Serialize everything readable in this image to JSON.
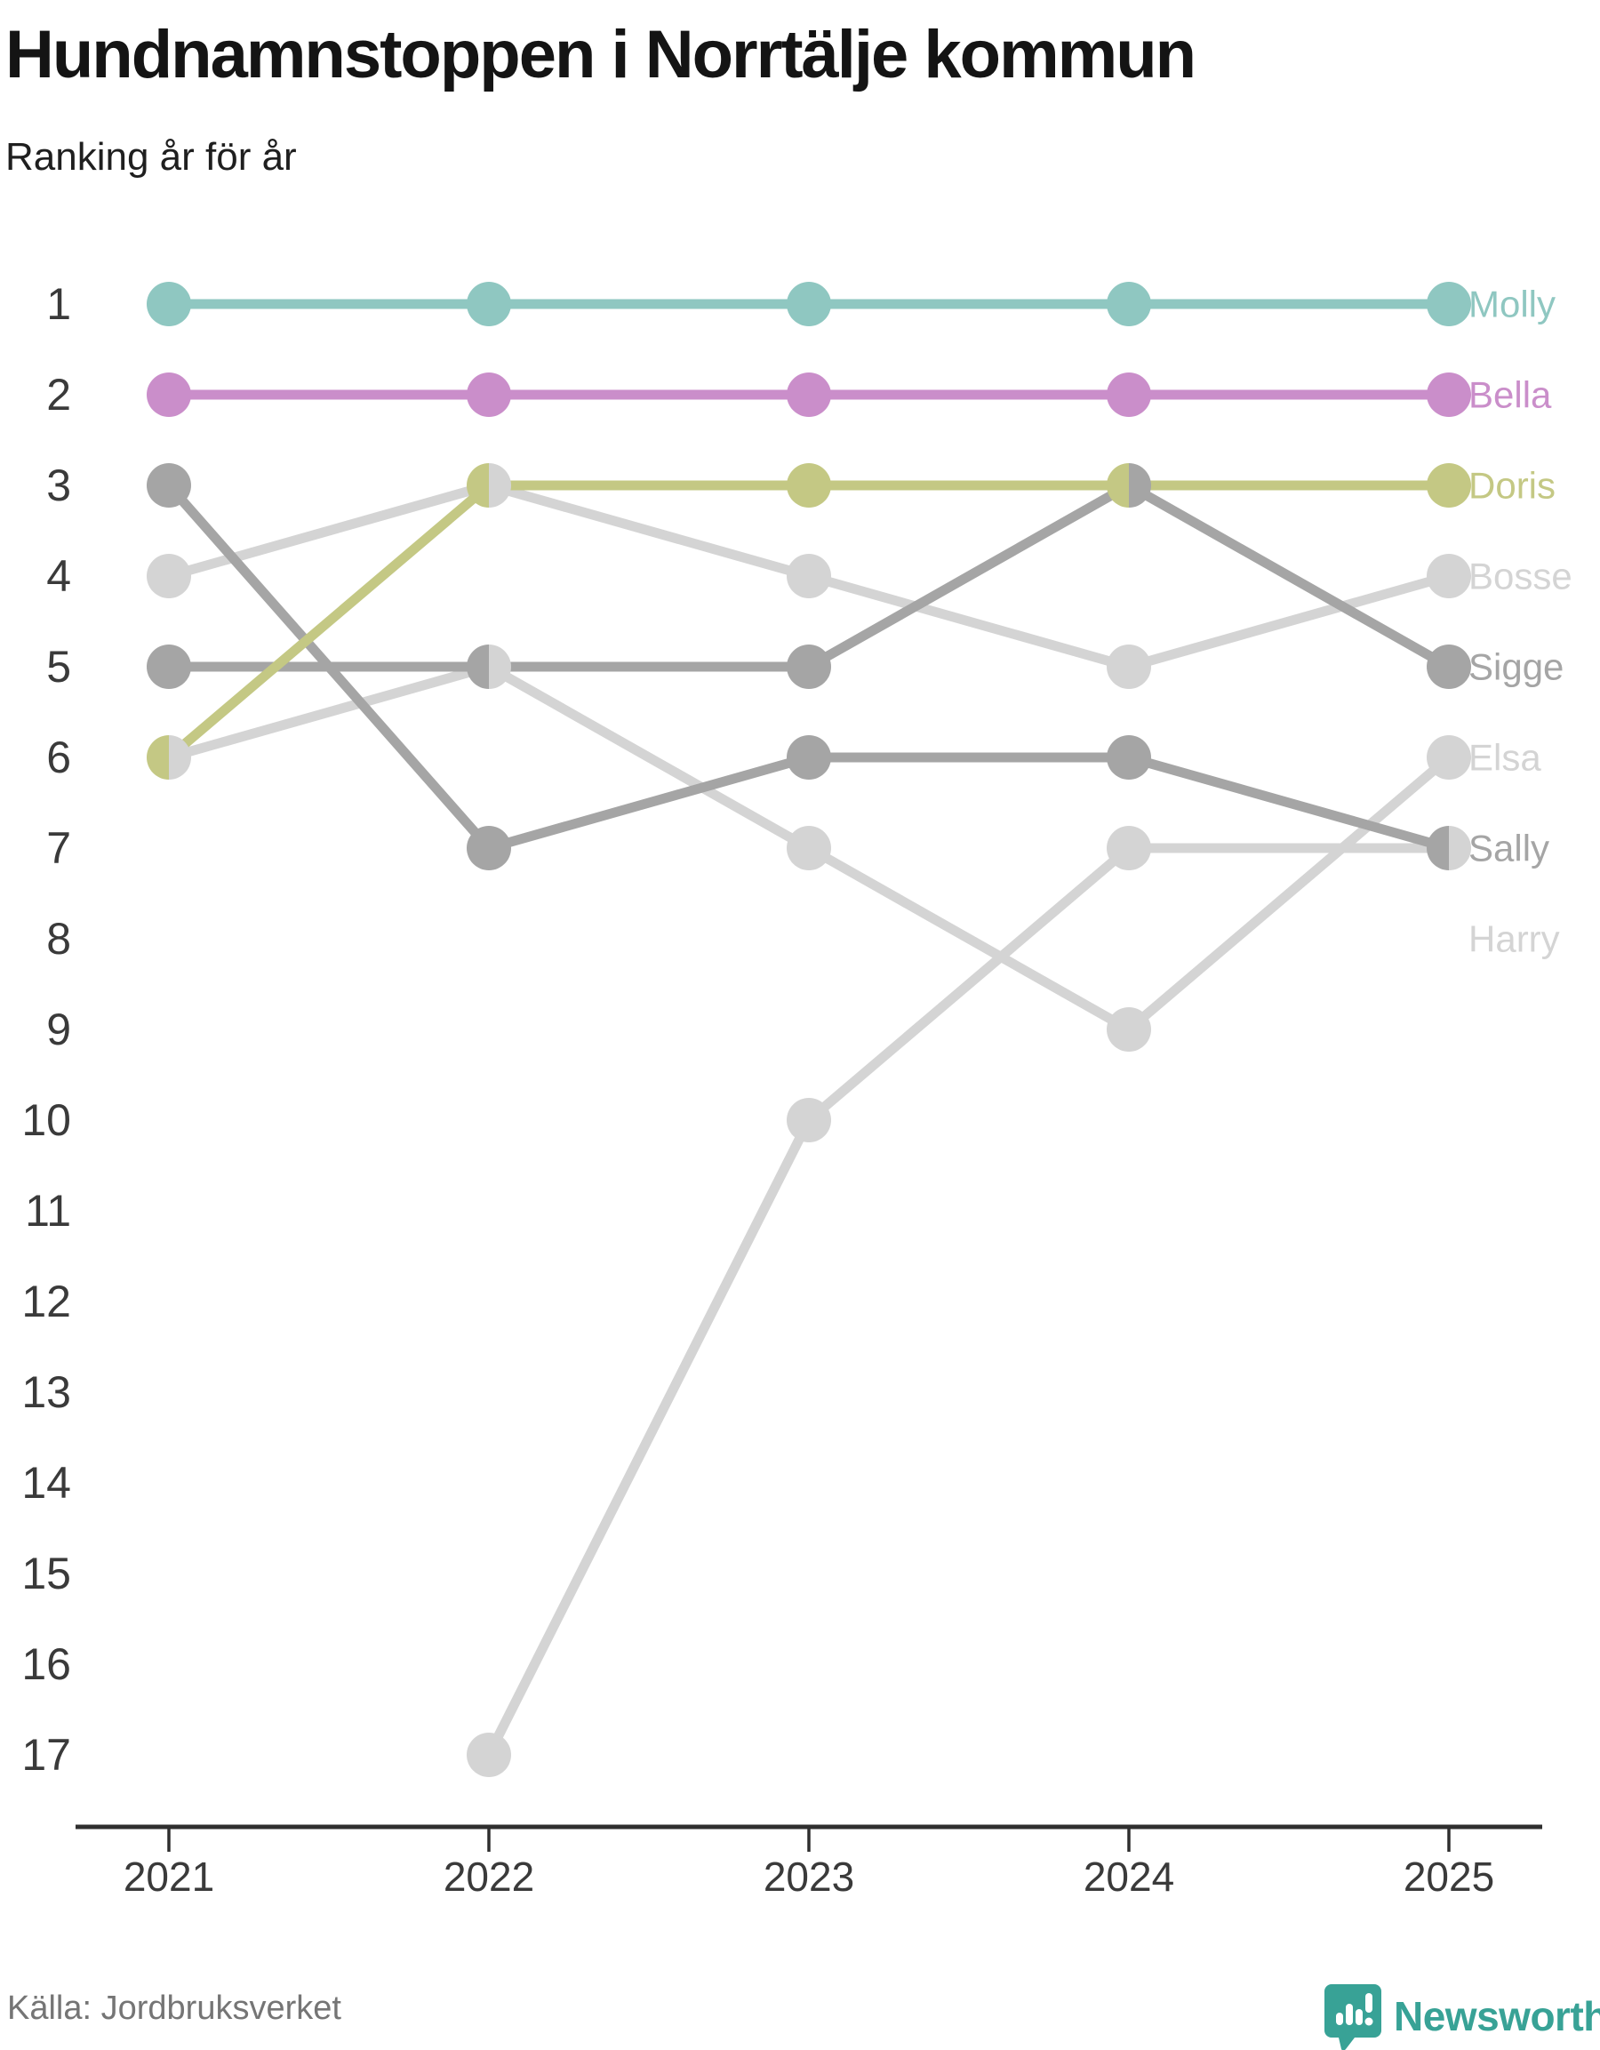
{
  "header": {
    "title": "Hundnamnstoppen i Norrtälje kommun",
    "subtitle": "Ranking år för år"
  },
  "chart_data": {
    "type": "line",
    "subtype": "bump-ranking",
    "x": [
      "2021",
      "2022",
      "2023",
      "2024",
      "2025"
    ],
    "y_axis": {
      "inverted": true,
      "ticks": [
        1,
        2,
        3,
        4,
        5,
        6,
        7,
        8,
        9,
        10,
        11,
        12,
        13,
        14,
        15,
        16,
        17
      ]
    },
    "series": [
      {
        "name": "Molly",
        "color": "#8fc7c1",
        "ranks": [
          1,
          1,
          1,
          1,
          1
        ]
      },
      {
        "name": "Bella",
        "color": "#ca8eca",
        "ranks": [
          2,
          2,
          2,
          2,
          2
        ]
      },
      {
        "name": "Doris",
        "color": "#c4c884",
        "ranks": [
          6,
          3,
          3,
          3,
          3
        ]
      },
      {
        "name": "Bosse",
        "color": "#d4d4d4",
        "ranks": [
          4,
          3,
          4,
          5,
          4
        ]
      },
      {
        "name": "Sigge",
        "color": "#a5a5a5",
        "ranks": [
          5,
          5,
          5,
          3,
          5
        ]
      },
      {
        "name": "Elsa",
        "color": "#d4d4d4",
        "ranks": [
          6,
          5,
          7,
          9,
          6
        ]
      },
      {
        "name": "Sally",
        "color": "#a5a5a5",
        "ranks": [
          3,
          7,
          6,
          6,
          7
        ]
      },
      {
        "name": "Harry",
        "color": "#d4d4d4",
        "ranks": [
          null,
          17,
          10,
          7,
          7
        ],
        "label_rank": 8
      }
    ],
    "colors": {
      "axis": "#2f2f2f",
      "tick_text": "#3a3a3a"
    }
  },
  "footer": {
    "source": "Källa: Jordbruksverket",
    "brand": "Newsworthy",
    "brand_color": "#38a296"
  }
}
